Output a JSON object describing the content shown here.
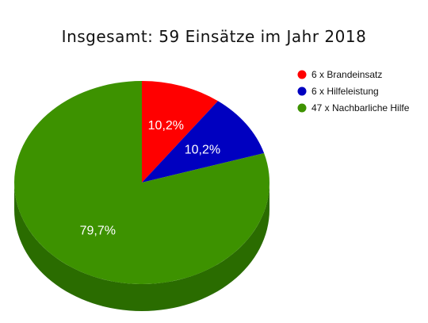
{
  "chart_data": {
    "type": "pie",
    "title": "Insgesamt: 59 Einsätze im Jahr 2018",
    "legend_position": "top-right",
    "slices": [
      {
        "legend": "6 x Brandeinsatz",
        "value": 6,
        "label": "10,2%",
        "color": "#ff0000",
        "side_color": "#a00000"
      },
      {
        "legend": "6 x Hilfeleistung",
        "value": 6,
        "label": "10,2%",
        "color": "#0000c0",
        "side_color": "#000070"
      },
      {
        "legend": "47 x Nachbarliche Hilfe",
        "value": 47,
        "label": "79,7%",
        "color": "#3d9200",
        "side_color": "#2a6c00"
      }
    ]
  }
}
